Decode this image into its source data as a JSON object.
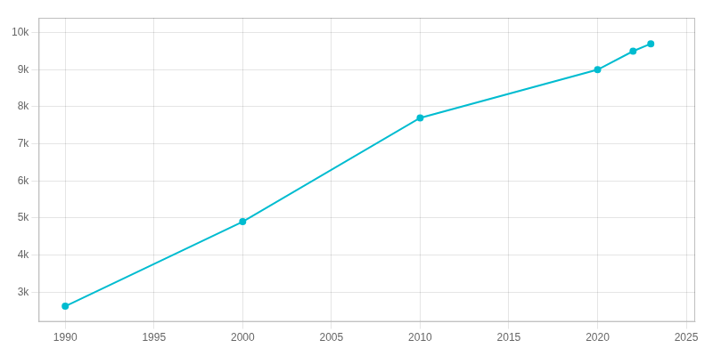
{
  "chart_data": {
    "type": "line",
    "x": [
      1990,
      2000,
      2010,
      2020,
      2022,
      2023
    ],
    "values": [
      2620,
      4900,
      7700,
      9000,
      9500,
      9700
    ],
    "color": "#00bcd0",
    "marker": "circle",
    "xlim": [
      1988.5,
      2025.5
    ],
    "xticks": [
      1990,
      1995,
      2000,
      2005,
      2010,
      2015,
      2020,
      2025
    ],
    "ylim": [
      2200,
      10400
    ],
    "yticks": [
      {
        "value": 3000,
        "label": "3k"
      },
      {
        "value": 4000,
        "label": "4k"
      },
      {
        "value": 5000,
        "label": "5k"
      },
      {
        "value": 6000,
        "label": "6k"
      },
      {
        "value": 7000,
        "label": "7k"
      },
      {
        "value": 8000,
        "label": "8k"
      },
      {
        "value": 9000,
        "label": "9k"
      },
      {
        "value": 10000,
        "label": "10k"
      }
    ],
    "grid": true
  }
}
